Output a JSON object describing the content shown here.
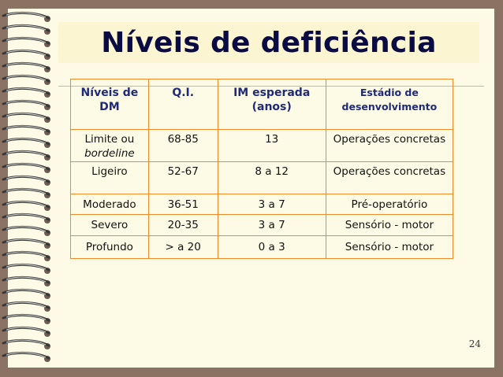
{
  "slide": {
    "title": "Níveis de deficiência",
    "page_number": "24"
  },
  "table": {
    "headers": [
      "Níveis de DM",
      "Q.I.",
      "IM esperada (anos)",
      "Estádio de desenvolvimento"
    ],
    "rows": [
      {
        "nivel": "Limite ou",
        "nivel_sub": "bordeline",
        "qi": "68-85",
        "im": "13",
        "estadio": "Operações concretas"
      },
      {
        "nivel": "Ligeiro",
        "qi": "52-67",
        "im": "8 a 12",
        "estadio": "Operações concretas"
      },
      {
        "nivel": "Moderado",
        "qi": "36-51",
        "im": "3 a 7",
        "estadio": "Pré-operatório"
      },
      {
        "nivel": "Severo",
        "qi": "20-35",
        "im": "3 a 7",
        "estadio": "Sensório - motor"
      },
      {
        "nivel": "Profundo",
        "qi": "> a 20",
        "im": "0 a 3",
        "estadio": "Sensório - motor"
      }
    ]
  },
  "colors": {
    "background": "#8a7363",
    "paper": "#fdfbe5",
    "title": "#0b0b44",
    "header_text": "#1f2a78",
    "table_border": "#f08a2e"
  }
}
